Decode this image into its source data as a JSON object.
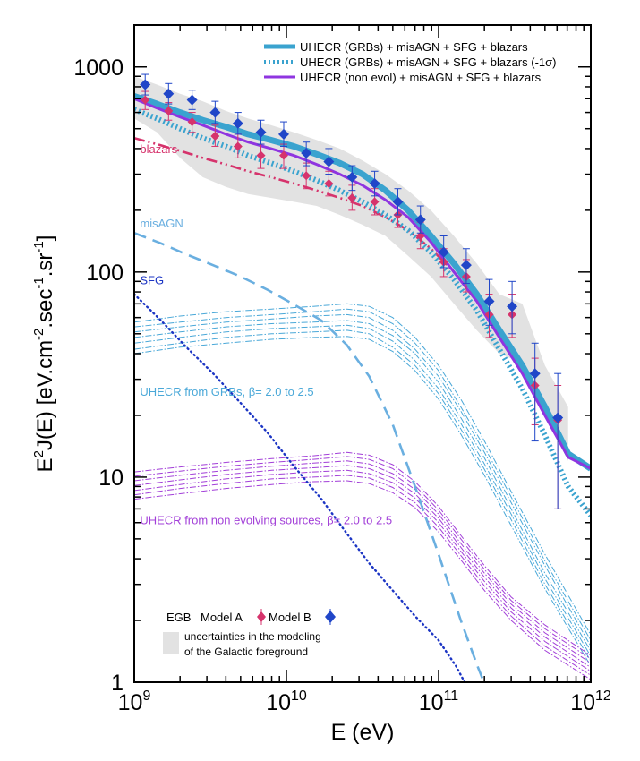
{
  "chart_data": {
    "type": "scatter",
    "xscale": "log",
    "yscale": "log",
    "xlim": [
      1000000000.0,
      1000000000000.0
    ],
    "ylim": [
      1,
      1600
    ],
    "xlabel_base": "E (eV)",
    "ylabel_parts": [
      "E",
      "2",
      "J(E) [eV.cm",
      "-2",
      ".sec",
      "-1",
      ".sr",
      "-1",
      "]"
    ],
    "x_ticks": [
      {
        "value": 1000000000.0,
        "base": "10",
        "exp": "9"
      },
      {
        "value": 10000000000.0,
        "base": "10",
        "exp": "10"
      },
      {
        "value": 100000000000.0,
        "base": "10",
        "exp": "11"
      },
      {
        "value": 1000000000000.0,
        "base": "10",
        "exp": "12"
      }
    ],
    "y_ticks": [
      {
        "value": 1,
        "label": "1"
      },
      {
        "value": 10,
        "label": "10"
      },
      {
        "value": 100,
        "label": "100"
      },
      {
        "value": 1000,
        "label": "1000"
      }
    ],
    "legend_position": "top-right",
    "legend": [
      {
        "label": "UHECR (GRBs) + misAGN + SFG + blazars",
        "style": "solid-thick",
        "color": "#3aa3cf"
      },
      {
        "label": "UHECR (GRBs) + misAGN + SFG + blazars (-1σ)",
        "style": "dotted-thick",
        "color": "#3aa3cf"
      },
      {
        "label": "UHECR (non evol) + misAGN + SFG + blazars",
        "style": "solid",
        "color": "#8f35e0"
      }
    ],
    "annotations": [
      {
        "text": "blazars",
        "color": "#d6336c",
        "at": [
          1090000000.0,
          380
        ]
      },
      {
        "text": "misAGN",
        "color": "#6aafe0",
        "at": [
          1090000000.0,
          165
        ]
      },
      {
        "text": "SFG",
        "color": "#1c35c4",
        "at": [
          1090000000.0,
          87
        ]
      },
      {
        "text": "UHECR from GRBs, β= 2.0 to 2.5",
        "color": "#4aa8d8",
        "at": [
          1090000000.0,
          25
        ]
      },
      {
        "text": "UHECR from non evolving sources, β= 2.0 to 2.5",
        "color": "#a23fd8",
        "at": [
          1090000000.0,
          5.9
        ]
      }
    ],
    "bottom_legend": {
      "egb_label": "EGB",
      "model_a_label": "Model A",
      "model_b_label": "Model B",
      "band_text_1": "uncertainties in the modeling",
      "band_text_2": "of the Galactic foreground"
    },
    "colors": {
      "model_a": "#d6336c",
      "model_b": "#2046c8",
      "band": "#e2e2e2",
      "grb_total": "#3aa3cf",
      "nonevol_total": "#8f35e0",
      "blazars": "#d6336c",
      "misagn": "#6aafe0",
      "sfg": "#1c35c4",
      "grb_family": "#4aa8d8",
      "nonevol_family": "#a23fd8"
    },
    "series": [
      {
        "key": "model_b",
        "name": "Model B",
        "points": [
          [
            1180000000.0,
            820,
            920,
            730
          ],
          [
            1680000000.0,
            740,
            830,
            660
          ],
          [
            2400000000.0,
            690,
            770,
            620
          ],
          [
            3400000000.0,
            600,
            680,
            530
          ],
          [
            4800000000.0,
            530,
            600,
            470
          ],
          [
            6800000000.0,
            480,
            550,
            420
          ],
          [
            9600000000.0,
            470,
            540,
            410
          ],
          [
            13500000000.0,
            380,
            430,
            330
          ],
          [
            19000000000.0,
            345,
            400,
            300
          ],
          [
            27000000000.0,
            290,
            330,
            250
          ],
          [
            38000000000.0,
            270,
            310,
            235
          ],
          [
            54000000000.0,
            220,
            255,
            190
          ],
          [
            76000000000.0,
            180,
            210,
            155
          ],
          [
            108000000000.0,
            125,
            150,
            105
          ],
          [
            152000000000.0,
            108,
            130,
            88
          ],
          [
            215000000000.0,
            72,
            92,
            55
          ],
          [
            304000000000.0,
            68,
            90,
            50
          ],
          [
            430000000000.0,
            32,
            45,
            15
          ],
          [
            607000000000.0,
            19.5,
            32,
            7
          ]
        ]
      },
      {
        "key": "model_a",
        "name": "Model A",
        "points": [
          [
            1180000000.0,
            690,
            760,
            620
          ],
          [
            1680000000.0,
            610,
            670,
            550
          ],
          [
            2400000000.0,
            540,
            600,
            480
          ],
          [
            3400000000.0,
            460,
            520,
            410
          ],
          [
            4800000000.0,
            410,
            470,
            360
          ],
          [
            6800000000.0,
            370,
            420,
            320
          ],
          [
            9600000000.0,
            370,
            420,
            320
          ],
          [
            13500000000.0,
            295,
            340,
            255
          ],
          [
            19000000000.0,
            270,
            310,
            235
          ],
          [
            27000000000.0,
            230,
            265,
            200
          ],
          [
            38000000000.0,
            220,
            255,
            190
          ],
          [
            54000000000.0,
            190,
            220,
            165
          ],
          [
            76000000000.0,
            150,
            175,
            130
          ],
          [
            108000000000.0,
            112,
            130,
            95
          ],
          [
            152000000000.0,
            95,
            115,
            80
          ],
          [
            215000000000.0,
            62,
            78,
            48
          ],
          [
            304000000000.0,
            62,
            78,
            48
          ],
          [
            430000000000.0,
            28,
            38,
            18
          ],
          [
            607000000000.0,
            19,
            28,
            7
          ]
        ]
      },
      {
        "key": "band",
        "name": "uncertainties in the modeling of the Galactic foreground",
        "x": [
          1000000000.0,
          1410000000.0,
          2000000000.0,
          2820000000.0,
          4000000000.0,
          5600000000.0,
          7900000000.0,
          11200000000.0,
          15800000000.0,
          22400000000.0,
          31600000000.0,
          44700000000.0,
          63000000000.0,
          89000000000.0,
          126000000000.0,
          178000000000.0,
          251000000000.0,
          355000000000.0,
          500000000000.0,
          710000000000.0
        ],
        "upper": [
          900,
          820,
          740,
          680,
          610,
          560,
          520,
          480,
          440,
          400,
          350,
          300,
          250,
          200,
          150,
          110,
          78,
          70,
          35,
          22
        ],
        "lower": [
          560,
          480,
          360,
          290,
          260,
          240,
          230,
          220,
          210,
          190,
          170,
          150,
          120,
          95,
          70,
          52,
          40,
          36,
          20,
          12
        ]
      },
      {
        "key": "grb_total",
        "name": "UHECR (GRBs) + misAGN + SFG + blazars",
        "x": [
          1000000000.0,
          1410000000.0,
          2000000000.0,
          2820000000.0,
          4000000000.0,
          5600000000.0,
          7900000000.0,
          11200000000.0,
          15800000000.0,
          22400000000.0,
          31600000000.0,
          44700000000.0,
          63000000000.0,
          89000000000.0,
          126000000000.0,
          178000000000.0,
          251000000000.0,
          355000000000.0,
          500000000000.0,
          710000000000.0,
          1000000000000.0
        ],
        "y": [
          720,
          660,
          600,
          550,
          510,
          470,
          440,
          410,
          375,
          340,
          300,
          250,
          200,
          150,
          110,
          78,
          52,
          35,
          22,
          13,
          11
        ]
      },
      {
        "key": "grb_total_minus1sigma",
        "name": "UHECR (GRBs) + misAGN + SFG + blazars (-1σ)",
        "x": [
          1000000000.0,
          1410000000.0,
          2000000000.0,
          2820000000.0,
          4000000000.0,
          5600000000.0,
          7900000000.0,
          11200000000.0,
          15800000000.0,
          22400000000.0,
          31600000000.0,
          44700000000.0,
          63000000000.0,
          89000000000.0,
          126000000000.0,
          178000000000.0,
          251000000000.0,
          355000000000.0,
          500000000000.0,
          710000000000.0,
          1000000000000.0
        ],
        "y": [
          620,
          560,
          500,
          450,
          410,
          370,
          340,
          310,
          280,
          250,
          220,
          190,
          160,
          125,
          92,
          65,
          42,
          27,
          16,
          9,
          6.5
        ]
      },
      {
        "key": "nonevol_total",
        "name": "UHECR (non evol) + misAGN + SFG + blazars",
        "x": [
          1000000000.0,
          1410000000.0,
          2000000000.0,
          2820000000.0,
          4000000000.0,
          5600000000.0,
          7900000000.0,
          11200000000.0,
          15800000000.0,
          22400000000.0,
          31600000000.0,
          44700000000.0,
          63000000000.0,
          89000000000.0,
          126000000000.0,
          178000000000.0,
          251000000000.0,
          355000000000.0,
          500000000000.0,
          710000000000.0,
          1000000000000.0
        ],
        "y": [
          700,
          630,
          570,
          520,
          470,
          430,
          400,
          370,
          335,
          300,
          265,
          225,
          185,
          140,
          100,
          72,
          48,
          32,
          20,
          12.5,
          11
        ]
      },
      {
        "key": "blazars",
        "name": "blazars",
        "x": [
          1000000000.0,
          1410000000.0,
          2000000000.0,
          2820000000.0,
          4000000000.0,
          5600000000.0,
          7900000000.0,
          11200000000.0,
          15800000000.0,
          22400000000.0,
          31600000000.0,
          44700000000.0,
          63000000000.0,
          89000000000.0,
          126000000000.0,
          178000000000.0,
          251000000000.0
        ],
        "y": [
          450,
          420,
          390,
          360,
          335,
          310,
          290,
          270,
          250,
          230,
          210,
          185,
          160,
          130,
          100,
          75,
          52
        ]
      },
      {
        "key": "misagn",
        "name": "misAGN",
        "x": [
          1000000000.0,
          1500000000.0,
          2200000000.0,
          3300000000.0,
          5000000000.0,
          7500000000.0,
          11000000000.0,
          17000000000.0,
          25000000000.0,
          35000000000.0,
          50000000000.0,
          70000000000.0,
          100000000000.0,
          140000000000.0,
          180000000000.0,
          210000000000.0
        ],
        "y": [
          155,
          138,
          122,
          108,
          95,
          82,
          70,
          58,
          44,
          31,
          18,
          9,
          4.2,
          2.0,
          1.2,
          0.9
        ]
      },
      {
        "key": "sfg",
        "name": "SFG",
        "x": [
          1000000000.0,
          1500000000.0,
          2200000000.0,
          3300000000.0,
          5000000000.0,
          7500000000.0,
          11000000000.0,
          17000000000.0,
          25000000000.0,
          35000000000.0,
          50000000000.0,
          70000000000.0,
          100000000000.0,
          130000000000.0,
          160000000000.0,
          190000000000.0
        ],
        "y": [
          78,
          58,
          43,
          32,
          23,
          16.5,
          11.5,
          7.8,
          5.3,
          3.8,
          2.8,
          2.1,
          1.6,
          1.2,
          0.9,
          0.7
        ]
      },
      {
        "key": "grb_family",
        "name": "UHECR from GRBs, β= 2.0 to 2.5",
        "x": [
          1000000000.0,
          2000000000.0,
          4000000000.0,
          8000000000.0,
          15000000000.0,
          25000000000.0,
          35000000000.0,
          50000000000.0,
          70000000000.0,
          100000000000.0,
          140000000000.0,
          200000000000.0,
          300000000000.0,
          500000000000.0,
          1000000000000.0
        ],
        "y_curves": [
          [
            57,
            61,
            64,
            66,
            68,
            70,
            68,
            60,
            48,
            35,
            24,
            15,
            8.5,
            4.2,
            1.7
          ],
          [
            54,
            57,
            60,
            62,
            64,
            66,
            64,
            56,
            45,
            33,
            22,
            14,
            8.0,
            3.9,
            1.6
          ],
          [
            51,
            54,
            57,
            59,
            61,
            62,
            60,
            52,
            42,
            31,
            21,
            13.2,
            7.5,
            3.7,
            1.5
          ],
          [
            48,
            51,
            54,
            56,
            57,
            58,
            56,
            49,
            40,
            29,
            19.5,
            12.4,
            7.0,
            3.4,
            1.42
          ],
          [
            45,
            48,
            51,
            53,
            54,
            55,
            53,
            46,
            37,
            27,
            18.3,
            11.6,
            6.6,
            3.2,
            1.34
          ],
          [
            42,
            45,
            48,
            50,
            51,
            52,
            50,
            43,
            35,
            25.5,
            17.2,
            10.9,
            6.2,
            3.0,
            1.27
          ],
          [
            40,
            43,
            45,
            47,
            48,
            48.5,
            47,
            41,
            33,
            24,
            16.2,
            10.2,
            5.8,
            2.85,
            1.2
          ]
        ]
      },
      {
        "key": "nonevol_family",
        "name": "UHECR from non evolving sources, β= 2.0 to 2.5",
        "x": [
          1000000000.0,
          2000000000.0,
          4000000000.0,
          8000000000.0,
          15000000000.0,
          25000000000.0,
          35000000000.0,
          50000000000.0,
          70000000000.0,
          100000000000.0,
          140000000000.0,
          200000000000.0,
          300000000000.0,
          500000000000.0,
          1000000000000.0
        ],
        "y_curves": [
          [
            10.6,
            11.2,
            11.8,
            12.3,
            12.7,
            13.2,
            12.8,
            11.5,
            9.5,
            7.2,
            5.2,
            3.7,
            2.6,
            1.9,
            1.35
          ],
          [
            10.1,
            10.7,
            11.3,
            11.8,
            12.2,
            12.6,
            12.2,
            11.0,
            9.1,
            6.9,
            5.0,
            3.55,
            2.5,
            1.82,
            1.3
          ],
          [
            9.6,
            10.2,
            10.8,
            11.3,
            11.7,
            12.0,
            11.6,
            10.4,
            8.7,
            6.6,
            4.75,
            3.4,
            2.4,
            1.74,
            1.24
          ],
          [
            9.1,
            9.7,
            10.3,
            10.8,
            11.1,
            11.4,
            11.0,
            9.9,
            8.3,
            6.3,
            4.55,
            3.25,
            2.3,
            1.66,
            1.18
          ],
          [
            8.6,
            9.2,
            9.8,
            10.3,
            10.6,
            10.8,
            10.4,
            9.4,
            7.9,
            6.0,
            4.35,
            3.1,
            2.2,
            1.58,
            1.13
          ],
          [
            8.2,
            8.8,
            9.3,
            9.8,
            10.0,
            10.2,
            9.9,
            8.9,
            7.5,
            5.7,
            4.15,
            2.95,
            2.1,
            1.5,
            1.08
          ],
          [
            7.8,
            8.3,
            8.8,
            9.2,
            9.5,
            9.6,
            9.3,
            8.4,
            7.1,
            5.4,
            3.95,
            2.8,
            2.0,
            1.43,
            1.03
          ]
        ]
      }
    ]
  }
}
